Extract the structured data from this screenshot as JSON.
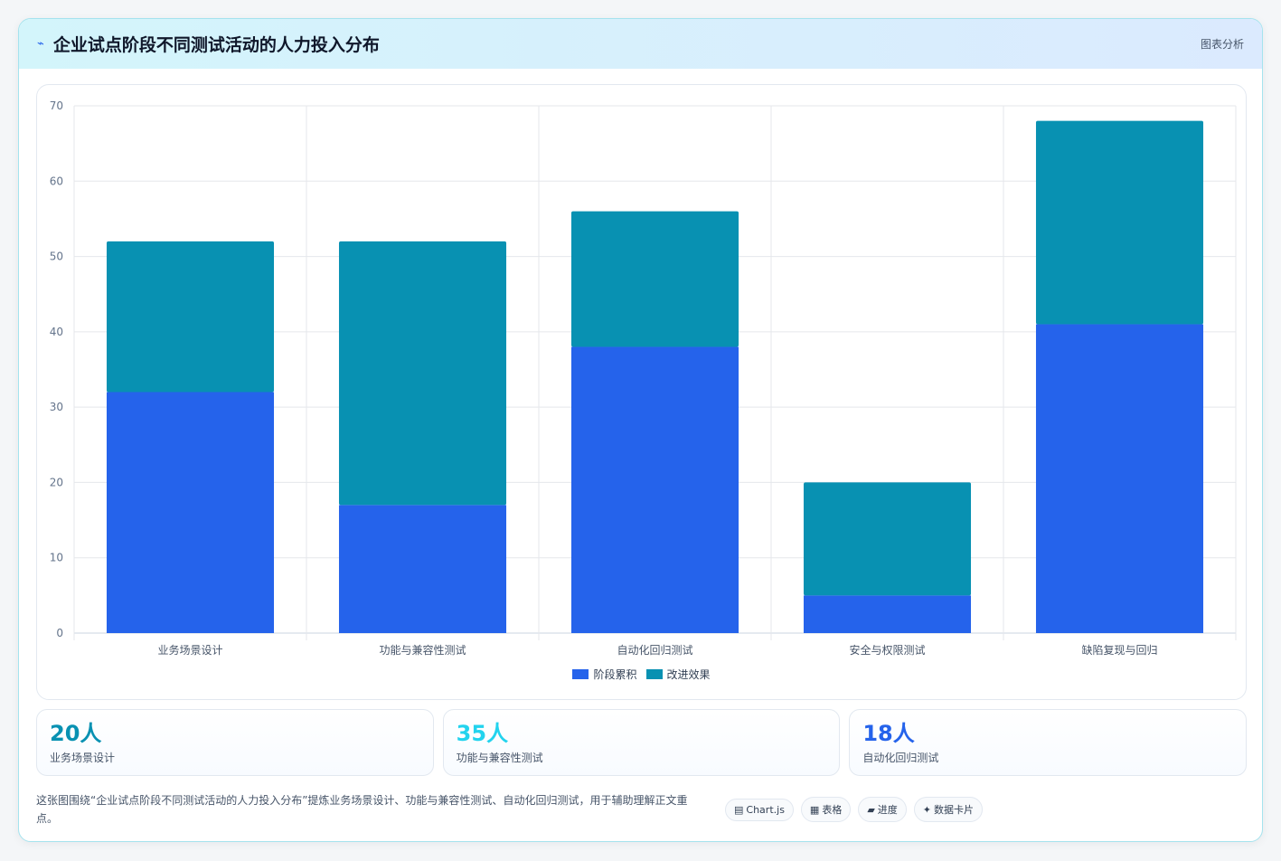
{
  "header": {
    "title": "企业试点阶段不同测试活动的人力投入分布",
    "icon": "chart-line-icon",
    "tag": "图表分析"
  },
  "chart_data": {
    "type": "bar",
    "stacked": true,
    "categories": [
      "业务场景设计",
      "功能与兼容性测试",
      "自动化回归测试",
      "安全与权限测试",
      "缺陷复现与回归"
    ],
    "series": [
      {
        "name": "阶段累积",
        "values": [
          32,
          17,
          38,
          5,
          41
        ],
        "color": "#2563eb"
      },
      {
        "name": "改进效果",
        "values": [
          20,
          35,
          18,
          15,
          27
        ],
        "color": "#0891b2"
      }
    ],
    "ylim": [
      0,
      70
    ],
    "yticks": [
      0,
      10,
      20,
      30,
      40,
      50,
      60,
      70
    ],
    "grid": true,
    "legend": "bottom"
  },
  "stats": [
    {
      "value": "20人",
      "label": "业务场景设计",
      "color": "#0891b2"
    },
    {
      "value": "35人",
      "label": "功能与兼容性测试",
      "color": "#22d3ee"
    },
    {
      "value": "18人",
      "label": "自动化回归测试",
      "color": "#2563eb"
    }
  ],
  "footer": {
    "description": "这张图围绕“企业试点阶段不同测试活动的人力投入分布”提炼业务场景设计、功能与兼容性测试、自动化回归测试，用于辅助理解正文重点。",
    "pills": [
      {
        "icon": "▤",
        "label": "Chart.js"
      },
      {
        "icon": "▦",
        "label": "表格"
      },
      {
        "icon": "▰",
        "label": "进度"
      },
      {
        "icon": "✦",
        "label": "数据卡片"
      }
    ]
  }
}
